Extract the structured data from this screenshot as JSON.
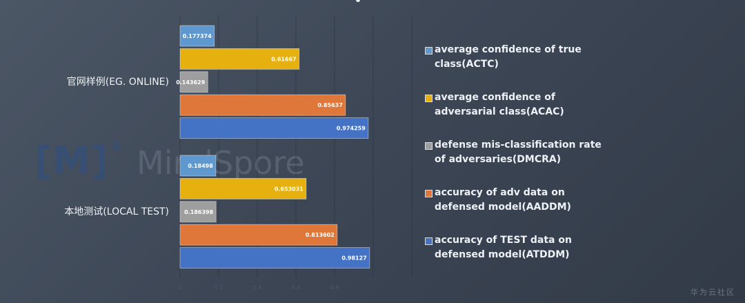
{
  "chart_data": {
    "type": "bar",
    "orientation": "horizontal",
    "categories": [
      "官网样例(EG. ONLINE)",
      "本地测试(LOCAL TEST)"
    ],
    "series": [
      {
        "name": "average confidence of true class(ACTC)",
        "color": "#5f98cf",
        "values": [
          0.177374,
          0.18498
        ]
      },
      {
        "name": "average confidence of adversarial class(ACAC)",
        "color": "#e6b10f",
        "values": [
          0.61667,
          0.653031
        ]
      },
      {
        "name": "defense mis-classification rate of adversaries(DMCRA)",
        "color": "#9e9e9e",
        "values": [
          0.143629,
          0.186398
        ]
      },
      {
        "name": "accuracy of adv data on defensed model(AADDM)",
        "color": "#e0773a",
        "values": [
          0.85637,
          0.813602
        ]
      },
      {
        "name": "accuracy of TEST data on defensed model(ATDDM)",
        "color": "#4472c4",
        "values": [
          0.974259,
          0.98127
        ]
      }
    ],
    "data_labels": [
      [
        "0.177374",
        "0.61667",
        "0.143629",
        "0.85637",
        "0.974259"
      ],
      [
        "0.18498",
        "0.653031",
        "0.186398",
        "0.813602",
        "0.98127"
      ]
    ],
    "xlim": [
      0,
      1.2
    ],
    "xticks": [
      "0",
      "0.2",
      "0.4",
      "0.6",
      "0.8"
    ],
    "grid": true,
    "legend_position": "right"
  },
  "logo": {
    "mark": "[M]",
    "superscript": "s",
    "text": "MindSpore"
  },
  "watermark": "华为云社区",
  "colors": {
    "background": "#3d4756",
    "label_text": "#eef1f5",
    "tick_text": "#4e5867"
  }
}
